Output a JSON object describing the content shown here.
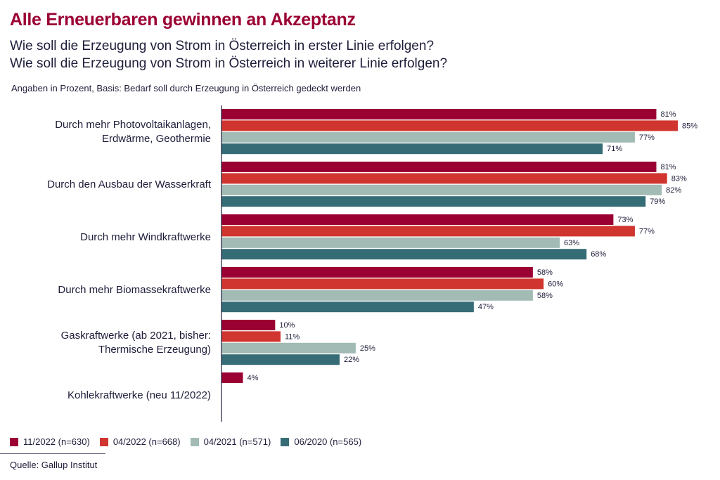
{
  "title": "Alle Erneuerbaren gewinnen an Akzeptanz",
  "subtitle1": "Wie soll die Erzeugung von Strom in Österreich in erster Linie erfolgen?",
  "subtitle2": "Wie soll die Erzeugung von Strom in Österreich in weiterer Linie erfolgen?",
  "note": "Angaben in Prozent, Basis: Bedarf soll durch Erzeugung in Österreich gedeckt werden",
  "source": "Quelle: Gallup Institut",
  "chart_data": {
    "type": "bar",
    "orientation": "horizontal",
    "categories": [
      [
        "Durch mehr Photovoltaikanlagen,",
        "Erdwärme, Geothermie"
      ],
      [
        "Durch den Ausbau der Wasserkraft"
      ],
      [
        "Durch mehr Windkraftwerke"
      ],
      [
        "Durch mehr Biomassekraftwerke"
      ],
      [
        "Gaskraftwerke (ab 2021, bisher:",
        "Thermische Erzeugung)"
      ],
      [
        "Kohlekraftwerke (neu 11/2022)"
      ]
    ],
    "unit": "%",
    "xlim": [
      0,
      100
    ],
    "legend_position": "bottom-left",
    "series": [
      {
        "name": "11/2022 (n=630)",
        "color": "#9b0033",
        "values": [
          81,
          81,
          73,
          58,
          10,
          4
        ]
      },
      {
        "name": "04/2022 (n=668)",
        "color": "#d0352f",
        "values": [
          85,
          83,
          77,
          60,
          11,
          null
        ]
      },
      {
        "name": "04/2021 (n=571)",
        "color": "#a2bbb4",
        "values": [
          77,
          82,
          63,
          58,
          25,
          null
        ]
      },
      {
        "name": "06/2020 (n=565)",
        "color": "#366c76",
        "values": [
          71,
          79,
          68,
          47,
          22,
          null
        ]
      }
    ]
  }
}
